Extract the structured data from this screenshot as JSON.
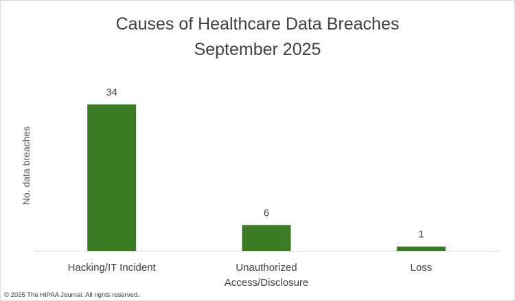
{
  "chart_data": {
    "type": "bar",
    "title": "Causes of Healthcare Data Breaches",
    "subtitle": "September 2025",
    "xlabel": "",
    "ylabel": "No. data breaches",
    "categories": [
      "Hacking/IT Incident",
      "Unauthorized\nAccess/Disclosure",
      "Loss"
    ],
    "values": [
      34,
      6,
      1
    ],
    "ylim": [
      0,
      40
    ],
    "grid": false,
    "data_labels": true,
    "colors": {
      "bar": "#3a7a23",
      "axis": "#d9d9d9",
      "text": "#404040"
    }
  },
  "footer": "© 2025 The HIPAA Journal. All rights reserved."
}
